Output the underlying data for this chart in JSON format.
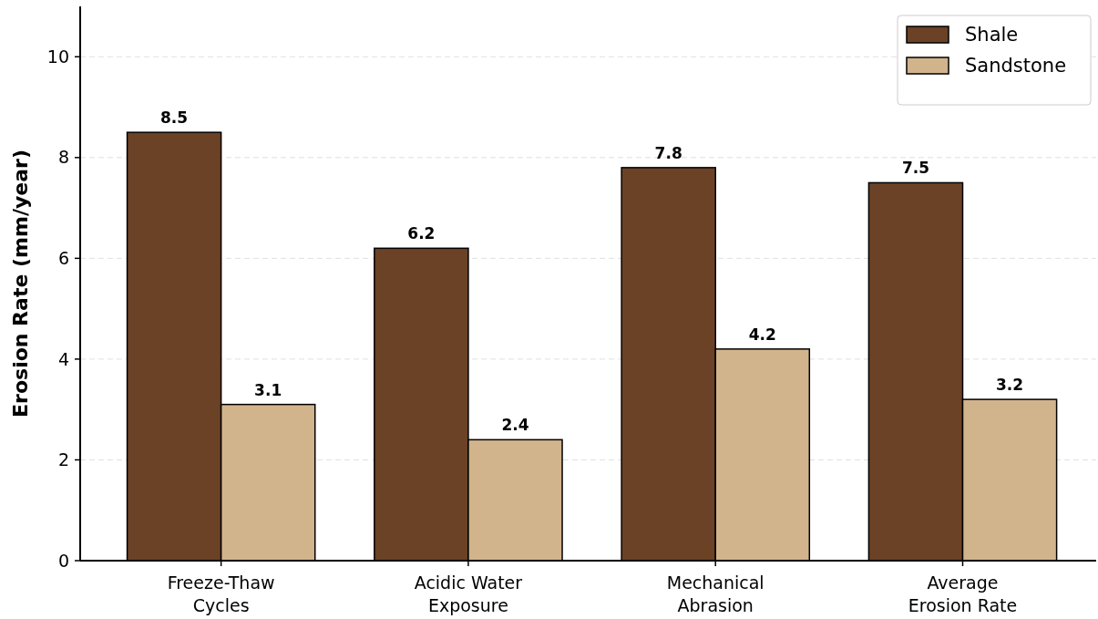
{
  "chart_data": {
    "type": "bar",
    "ylabel": "Erosion Rate (mm/year)",
    "categories": [
      "Freeze-Thaw\nCycles",
      "Acidic Water\nExposure",
      "Mechanical\nAbrasion",
      "Average\nErosion Rate"
    ],
    "series": [
      {
        "name": "Shale",
        "color": "#6b4226",
        "values": [
          8.5,
          6.2,
          7.8,
          7.5
        ]
      },
      {
        "name": "Sandstone",
        "color": "#d2b48c",
        "values": [
          3.1,
          2.4,
          4.2,
          3.2
        ]
      }
    ],
    "ylim": [
      0,
      11
    ],
    "yticks": [
      0,
      2,
      4,
      6,
      8,
      10
    ],
    "grid": "y",
    "legend": "top right",
    "data_labels": true
  }
}
